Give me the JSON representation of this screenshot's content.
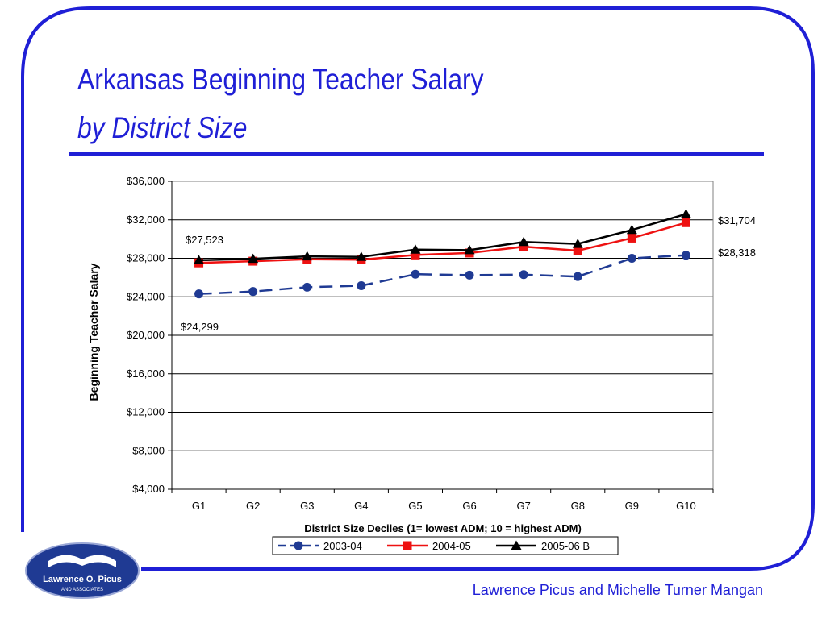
{
  "slide": {
    "title_line1": "Arkansas Beginning Teacher Salary",
    "title_line2": "by District Size",
    "footer": "Lawrence Picus and Michelle Turner Mangan",
    "logo_line1": "Lawrence O. Picus",
    "logo_line2": "AND ASSOCIATES"
  },
  "colors": {
    "accent": "#1f1fd6",
    "frame": "#1f1fd6",
    "series_2003": "#1f3a93",
    "series_2004": "#ee1111",
    "series_2005": "#000000"
  },
  "chart_data": {
    "type": "line",
    "categories": [
      "G1",
      "G2",
      "G3",
      "G4",
      "G5",
      "G6",
      "G7",
      "G8",
      "G9",
      "G10"
    ],
    "series": [
      {
        "name": "2003-04",
        "marker": "circle",
        "dash": true,
        "values": [
          24299,
          24550,
          25000,
          25150,
          26350,
          26250,
          26300,
          26100,
          28000,
          28318
        ]
      },
      {
        "name": "2004-05",
        "marker": "square",
        "dash": false,
        "values": [
          27523,
          27700,
          27900,
          27850,
          28350,
          28550,
          29200,
          28800,
          30100,
          31704
        ]
      },
      {
        "name": "2005-06 B",
        "marker": "triangle",
        "dash": false,
        "values": [
          27800,
          27950,
          28200,
          28150,
          28900,
          28850,
          29700,
          29500,
          30950,
          32600
        ]
      }
    ],
    "ylim": [
      4000,
      36000
    ],
    "yticks": [
      4000,
      8000,
      12000,
      16000,
      20000,
      24000,
      28000,
      32000,
      36000
    ],
    "ytick_labels": [
      "$4,000",
      "$8,000",
      "$12,000",
      "$16,000",
      "$20,000",
      "$24,000",
      "$28,000",
      "$32,000",
      "$36,000"
    ],
    "xlabel": "District Size Deciles (1= lowest ADM; 10 = highest ADM)",
    "ylabel": "Beginning Teacher Salary",
    "grid": "horizontal",
    "legend_position": "bottom",
    "annotations": [
      "$27,523",
      "$24,299",
      "$31,704",
      "$28,318"
    ]
  }
}
